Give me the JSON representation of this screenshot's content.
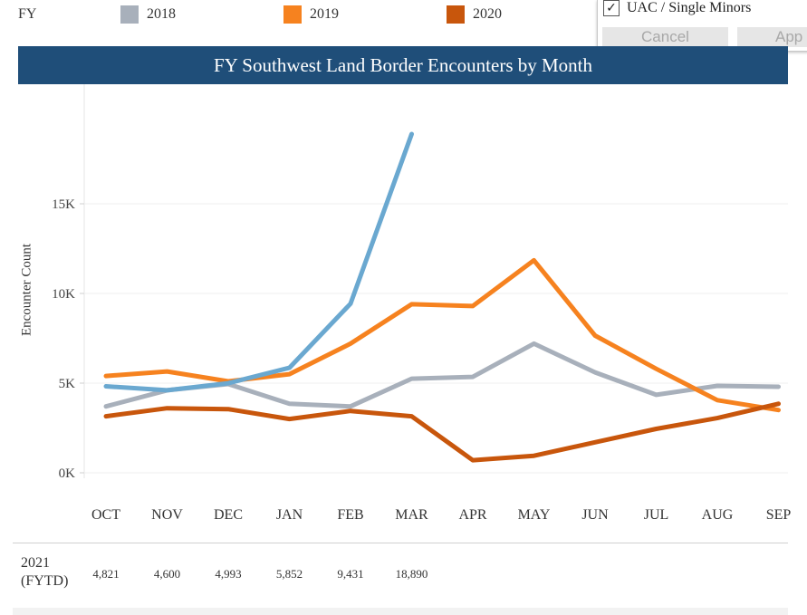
{
  "legend": {
    "title": "FY",
    "items": [
      {
        "label": "2018",
        "color": "#a8b0bb"
      },
      {
        "label": "2019",
        "color": "#f6821f"
      },
      {
        "label": "2020",
        "color": "#c8560c"
      }
    ]
  },
  "filter": {
    "option_label": "UAC / Single Minors",
    "checked": true,
    "cancel_label": "Cancel",
    "apply_label": "App"
  },
  "title_bar": "FY Southwest Land Border Encounters by Month",
  "chart_data": {
    "type": "line",
    "title": "FY Southwest Land Border Encounters by Month",
    "ylabel": "Encounter Count",
    "xlabel": "",
    "categories": [
      "OCT",
      "NOV",
      "DEC",
      "JAN",
      "FEB",
      "MAR",
      "APR",
      "MAY",
      "JUN",
      "JUL",
      "AUG",
      "SEP"
    ],
    "ylim": [
      0,
      20000
    ],
    "yticks": [
      0,
      5000,
      10000,
      15000
    ],
    "ytick_labels": [
      "0K",
      "5K",
      "10K",
      "15K"
    ],
    "grid": true,
    "series": [
      {
        "name": "2018",
        "color": "#a8b0bb",
        "values": [
          3700,
          4600,
          4950,
          3850,
          3700,
          5250,
          5350,
          7200,
          5600,
          4350,
          4850,
          4800
        ]
      },
      {
        "name": "2019",
        "color": "#f6821f",
        "values": [
          5400,
          5650,
          5100,
          5500,
          7200,
          9400,
          9300,
          11850,
          7650,
          5800,
          4050,
          3500
        ]
      },
      {
        "name": "2020",
        "color": "#c8560c",
        "values": [
          3150,
          3600,
          3550,
          3000,
          3450,
          3150,
          700,
          950,
          1700,
          2450,
          3050,
          3850
        ]
      },
      {
        "name": "2021 (FYTD)",
        "color": "#6aa8d0",
        "values": [
          4821,
          4600,
          4993,
          5852,
          9431,
          18890,
          null,
          null,
          null,
          null,
          null,
          null
        ]
      }
    ]
  },
  "table": {
    "row_label_line1": "2021",
    "row_label_line2": "(FYTD)",
    "values": [
      "4,821",
      "4,600",
      "4,993",
      "5,852",
      "9,431",
      "18,890"
    ]
  }
}
